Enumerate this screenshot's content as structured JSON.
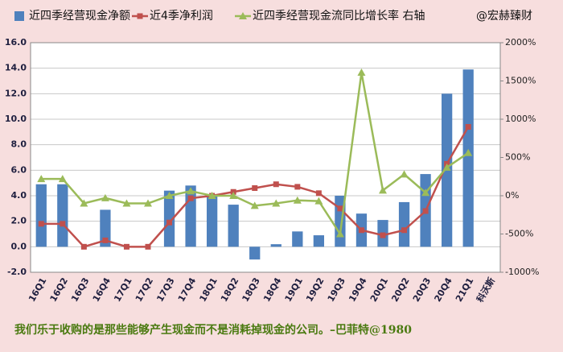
{
  "chart_data": {
    "type": "bar_line",
    "source_note": "@宏赫臻财",
    "footer": "我们乐于收购的是那些能够产生现金而不是消耗掉现金的公司。–巴菲特@1980",
    "categories": [
      "16Q1",
      "16Q2",
      "16Q3",
      "16Q4",
      "17Q1",
      "17Q2",
      "17Q3",
      "17Q4",
      "18Q1",
      "18Q2",
      "18Q3",
      "18Q4",
      "19Q1",
      "19Q2",
      "19Q3",
      "19Q4",
      "20Q1",
      "20Q2",
      "20Q3",
      "20Q4",
      "21Q1",
      "科沃斯"
    ],
    "series": [
      {
        "name": "近四季经营现金净额",
        "type": "bar",
        "color": "#4f81bd",
        "values": [
          4.9,
          4.9,
          null,
          2.9,
          null,
          null,
          4.4,
          4.8,
          4.1,
          3.3,
          -1.0,
          0.2,
          1.2,
          0.9,
          4.0,
          2.6,
          2.1,
          3.5,
          5.7,
          12.0,
          13.9,
          null
        ]
      },
      {
        "name": "近4季净利润",
        "type": "line",
        "marker": "square",
        "color": "#c0504d",
        "values": [
          1.8,
          1.8,
          0.0,
          0.5,
          0.0,
          0.0,
          1.9,
          3.8,
          4.0,
          4.3,
          4.6,
          4.9,
          4.7,
          4.2,
          3.0,
          1.3,
          0.9,
          1.3,
          2.8,
          6.5,
          9.4,
          null
        ]
      },
      {
        "name": "近四季经营现金流同比增长率 右轴",
        "type": "line",
        "marker": "triangle",
        "color": "#9bbb59",
        "axis": "y2",
        "values": [
          220,
          220,
          -100,
          -30,
          -100,
          -100,
          0,
          60,
          0,
          0,
          -130,
          -100,
          -60,
          -70,
          -500,
          1610,
          70,
          280,
          40,
          370,
          560,
          null
        ]
      }
    ],
    "ylim": [
      -2,
      16
    ],
    "yticks": [
      {
        "value": -2,
        "label": "-2.0"
      },
      {
        "value": 0,
        "label": "0.0"
      },
      {
        "value": 2,
        "label": "2.0"
      },
      {
        "value": 4,
        "label": "4.0"
      },
      {
        "value": 6,
        "label": "6.0"
      },
      {
        "value": 8,
        "label": "8.0"
      },
      {
        "value": 10,
        "label": "10.0"
      },
      {
        "value": 12,
        "label": "12.0"
      },
      {
        "value": 14,
        "label": "14.0"
      },
      {
        "value": 16,
        "label": "16.0"
      }
    ],
    "y2lim": [
      -1000,
      2000
    ],
    "y2ticks": [
      {
        "value": -1000,
        "label": "-1000%"
      },
      {
        "value": -500,
        "label": "-500%"
      },
      {
        "value": 0,
        "label": "0%"
      },
      {
        "value": 500,
        "label": "500%"
      },
      {
        "value": 1000,
        "label": "1000%"
      },
      {
        "value": 1500,
        "label": "1500%"
      },
      {
        "value": 2000,
        "label": "2000%"
      }
    ],
    "grid": true
  }
}
